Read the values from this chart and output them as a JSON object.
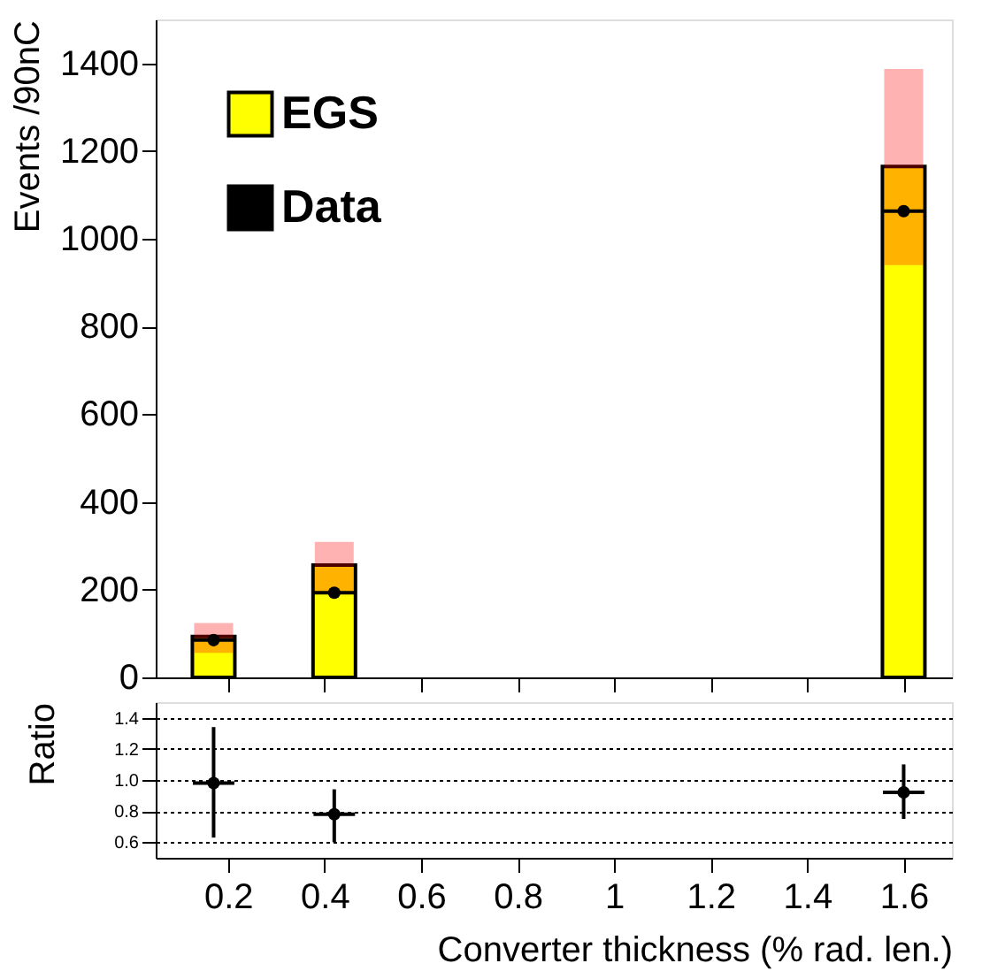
{
  "chart_data": [
    {
      "type": "bar",
      "ylabel": "Events /90nC",
      "x": [
        0.17,
        0.42,
        1.6
      ],
      "xlim": [
        0.05,
        1.7
      ],
      "xticks": [
        {
          "value": 0.2,
          "label": null
        },
        {
          "value": 0.4,
          "label": null
        },
        {
          "value": 0.6,
          "label": null
        },
        {
          "value": 0.8,
          "label": null
        },
        {
          "value": 1,
          "label": null
        },
        {
          "value": 1.2,
          "label": null
        },
        {
          "value": 1.4,
          "label": null
        },
        {
          "value": 1.6,
          "label": null
        }
      ],
      "ylim": [
        0,
        1500
      ],
      "yticks": [
        0,
        200,
        400,
        600,
        800,
        1000,
        1200,
        1400
      ],
      "tick_labels": "y",
      "legend": "top left",
      "series": [
        {
          "name": "EGS",
          "type": "bar",
          "color": "#ffff00",
          "values": [
            93,
            256,
            1165
          ],
          "errors": [
            [
              56,
              124
            ],
            [
              196,
              309
            ],
            [
              940,
              1387
            ]
          ]
        },
        {
          "name": "Data",
          "type": "scatter",
          "color": "#000000",
          "marker": "circle",
          "values": [
            85,
            193,
            1063
          ],
          "xerrors": [
            0.043,
            0.043,
            0.043
          ]
        }
      ]
    },
    {
      "type": "scatter",
      "xlabel": "Converter thickness (% rad. len.)",
      "ylabel": "Ratio",
      "x": [
        0.17,
        0.42,
        1.6
      ],
      "xlim": [
        0.05,
        1.7
      ],
      "xticks": [
        0.2,
        0.4,
        0.6,
        0.8,
        1,
        1.2,
        1.4,
        1.6
      ],
      "ylim": [
        0.5,
        1.5
      ],
      "yticks": [
        0.6,
        0.8,
        {
          "value": 1.0,
          "label": "1.0"
        },
        1.2,
        1.4
      ],
      "grid": "y",
      "marker": "circle",
      "series": [
        {
          "color": "#000000",
          "values": [
            0.98,
            0.78,
            0.92
          ],
          "errors": [
            [
              0.63,
              1.34
            ],
            [
              0.6,
              0.94
            ],
            [
              0.75,
              1.1
            ]
          ],
          "xerrors": [
            0.043,
            0.043,
            0.043
          ]
        }
      ]
    }
  ]
}
